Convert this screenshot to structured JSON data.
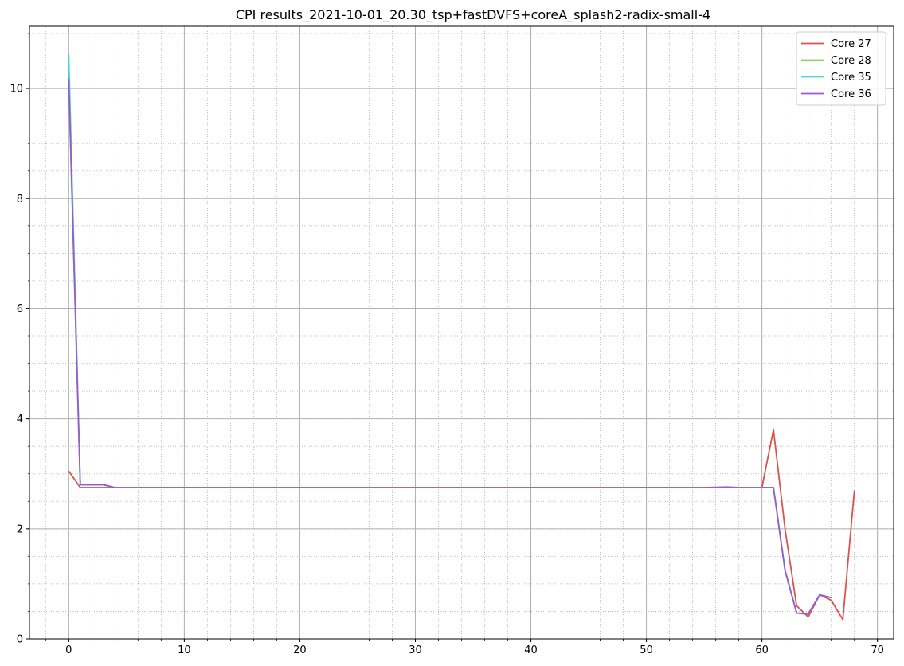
{
  "chart_data": {
    "type": "line",
    "title": "CPI results_2021-10-01_20.30_tsp+fastDVFS+coreA_splash2-radix-small-4",
    "xlabel": "",
    "ylabel": "",
    "xlim": [
      -3.4,
      71.4
    ],
    "ylim": [
      0,
      11.13
    ],
    "xticks": [
      0,
      10,
      20,
      30,
      40,
      50,
      60,
      70
    ],
    "yticks": [
      0,
      2,
      4,
      6,
      8,
      10
    ],
    "x_minor_step": 2,
    "y_minor_step": 0.5,
    "grid": "major solid + minor dotted",
    "legend_position": "top-right",
    "series": [
      {
        "name": "Core 27",
        "color": "#d9534f",
        "x": [
          0,
          1,
          2,
          3,
          4,
          5,
          10,
          20,
          30,
          40,
          50,
          55,
          57,
          58,
          59,
          60,
          61,
          62,
          63,
          64,
          65,
          66,
          67,
          68
        ],
        "y": [
          3.05,
          2.75,
          2.75,
          2.75,
          2.75,
          2.75,
          2.75,
          2.75,
          2.75,
          2.75,
          2.75,
          2.75,
          2.75,
          2.75,
          2.75,
          2.75,
          3.8,
          2.0,
          0.6,
          0.4,
          0.8,
          0.7,
          0.35,
          2.7
        ]
      },
      {
        "name": "Core 28",
        "color": "#7ed957",
        "x": [
          0,
          1,
          2,
          3,
          4,
          5,
          10,
          20,
          30,
          40,
          50,
          55,
          57,
          58,
          59,
          60,
          61,
          62,
          63,
          64,
          65,
          66
        ],
        "y": [
          10.1,
          2.8,
          2.8,
          2.8,
          2.75,
          2.75,
          2.75,
          2.75,
          2.75,
          2.75,
          2.75,
          2.75,
          2.75,
          2.75,
          2.75,
          2.75,
          2.75,
          1.25,
          0.47,
          0.45,
          0.8,
          0.75
        ]
      },
      {
        "name": "Core 35",
        "color": "#4fd3e0",
        "x": [
          0,
          1,
          2,
          3,
          4,
          5,
          10,
          20,
          30,
          40,
          50,
          55,
          57,
          58,
          59,
          60,
          61,
          62,
          63,
          64,
          65,
          66
        ],
        "y": [
          10.62,
          2.8,
          2.8,
          2.8,
          2.75,
          2.75,
          2.75,
          2.75,
          2.75,
          2.75,
          2.75,
          2.75,
          2.75,
          2.75,
          2.75,
          2.75,
          2.75,
          1.25,
          0.47,
          0.45,
          0.8,
          0.75
        ]
      },
      {
        "name": "Core 36",
        "color": "#9b59d0",
        "x": [
          0,
          1,
          2,
          3,
          4,
          5,
          10,
          20,
          30,
          40,
          50,
          55,
          57,
          58,
          59,
          60,
          61,
          62,
          63,
          64,
          65,
          66
        ],
        "y": [
          10.18,
          2.8,
          2.8,
          2.8,
          2.75,
          2.75,
          2.75,
          2.75,
          2.75,
          2.75,
          2.75,
          2.75,
          2.76,
          2.75,
          2.75,
          2.75,
          2.75,
          1.25,
          0.47,
          0.45,
          0.8,
          0.75
        ]
      }
    ]
  }
}
